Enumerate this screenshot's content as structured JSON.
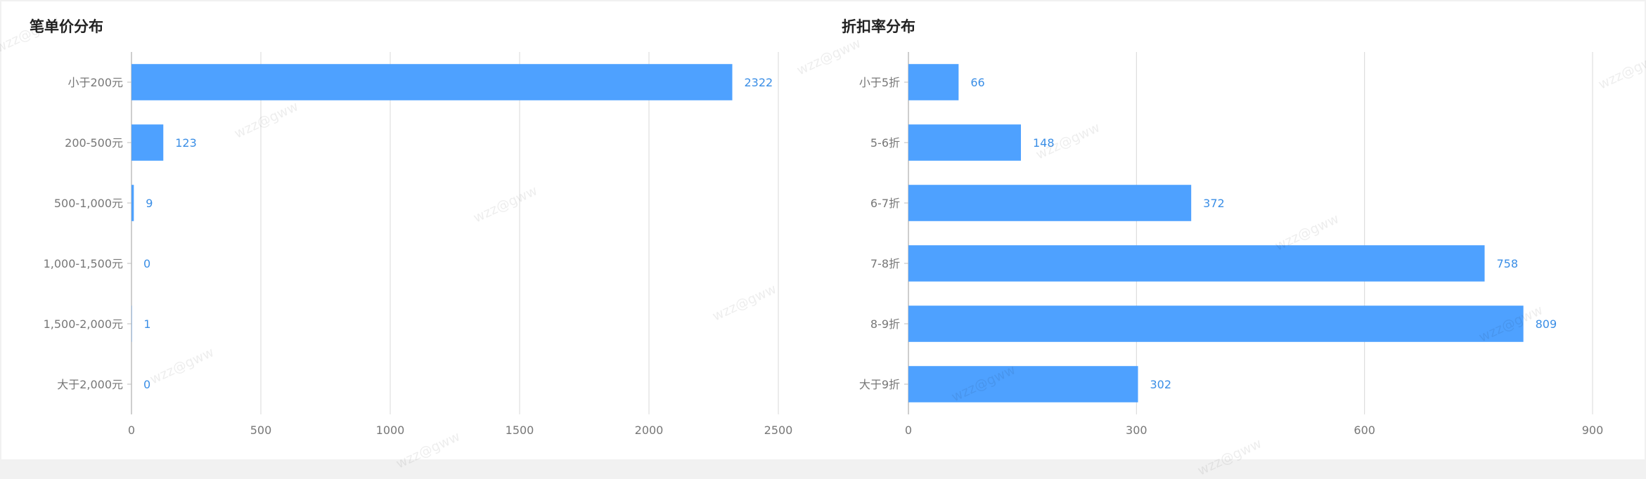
{
  "watermark_text": "wzz@gww",
  "colors": {
    "bar": "#4ea1ff",
    "value_label": "#3a8ee6",
    "tick_label": "#777777",
    "grid": "#d8d8d8",
    "axis": "#bdbdbd"
  },
  "chart_data": [
    {
      "type": "bar",
      "orientation": "horizontal",
      "title": "笔单价分布",
      "categories": [
        "小于200元",
        "200-500元",
        "500-1,000元",
        "1,000-1,500元",
        "1,500-2,000元",
        "大于2,000元"
      ],
      "values": [
        2322,
        123,
        9,
        0,
        1,
        0
      ],
      "xlim": [
        0,
        2500
      ],
      "xticks": [
        0,
        500,
        1000,
        1500,
        2000,
        2500
      ],
      "xlabel": "",
      "ylabel": "",
      "grid": "vertical"
    },
    {
      "type": "bar",
      "orientation": "horizontal",
      "title": "折扣率分布",
      "categories": [
        "小于5折",
        "5-6折",
        "6-7折",
        "7-8折",
        "8-9折",
        "大于9折"
      ],
      "values": [
        66,
        148,
        372,
        758,
        809,
        302
      ],
      "xlim": [
        0,
        900
      ],
      "xticks": [
        0,
        300,
        600,
        900
      ],
      "xlabel": "",
      "ylabel": "",
      "grid": "vertical"
    }
  ]
}
